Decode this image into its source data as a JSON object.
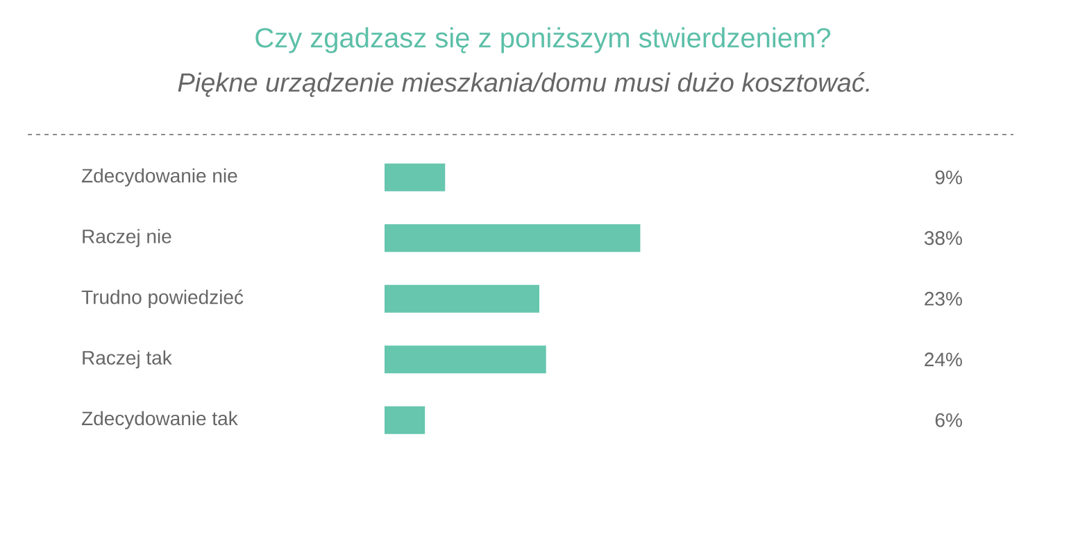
{
  "chart_data": {
    "type": "bar",
    "orientation": "horizontal",
    "title": "Czy zgadzasz się z poniższym stwierdzeniem?",
    "subtitle": "Piękne urządzenie mieszkania/domu musi dużo kosztować.",
    "categories": [
      "Zdecydowanie nie",
      "Raczej nie",
      "Trudno powiedzieć",
      "Raczej tak",
      "Zdecydowanie tak"
    ],
    "values": [
      9,
      38,
      23,
      24,
      6
    ],
    "value_labels": [
      "9%",
      "38%",
      "23%",
      "24%",
      "6%"
    ],
    "color": "#66c6ae"
  }
}
